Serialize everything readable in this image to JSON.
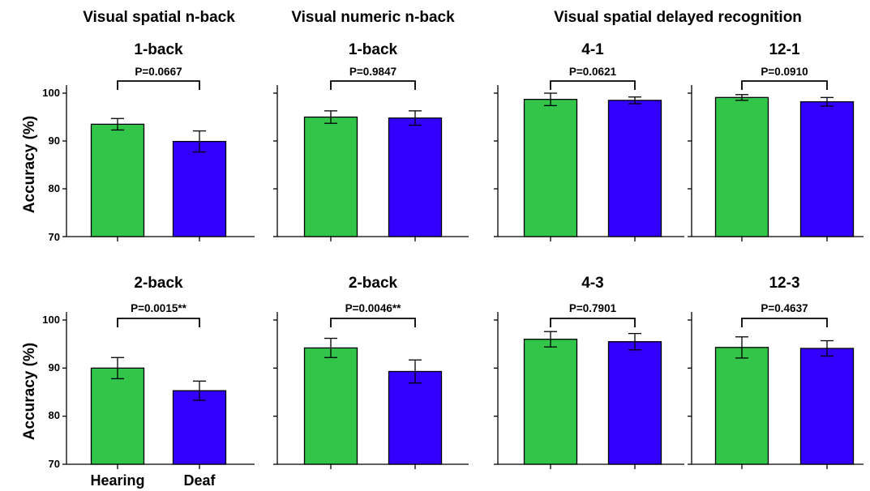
{
  "group_titles": [
    "Visual spatial n-back",
    "Visual numeric n-back",
    "Visual spatial delayed recognition"
  ],
  "ylabel": "Accuracy (%)",
  "yticks": [
    "70",
    "80",
    "90",
    "100"
  ],
  "categories": [
    "Hearing",
    "Deaf"
  ],
  "colors": {
    "Hearing": "#33c44a",
    "Deaf": "#3300ff"
  },
  "chart_data": [
    {
      "type": "bar",
      "title": "1-back",
      "categories": [
        "Hearing",
        "Deaf"
      ],
      "values": [
        93.5,
        89.9
      ],
      "errors": [
        1.2,
        2.2
      ],
      "ylim": [
        70,
        100
      ],
      "annotation": "P=0.0667"
    },
    {
      "type": "bar",
      "title": "1-back",
      "categories": [
        "Hearing",
        "Deaf"
      ],
      "values": [
        95.0,
        94.8
      ],
      "errors": [
        1.3,
        1.5
      ],
      "ylim": [
        70,
        100
      ],
      "annotation": "P=0.9847"
    },
    {
      "type": "bar",
      "title": "4-1",
      "categories": [
        "Hearing",
        "Deaf"
      ],
      "values": [
        98.7,
        98.5
      ],
      "errors": [
        1.3,
        0.7
      ],
      "ylim": [
        70,
        100
      ],
      "annotation": "P=0.0621"
    },
    {
      "type": "bar",
      "title": "12-1",
      "categories": [
        "Hearing",
        "Deaf"
      ],
      "values": [
        99.1,
        98.2
      ],
      "errors": [
        0.6,
        0.9
      ],
      "ylim": [
        70,
        100
      ],
      "annotation": "P=0.0910"
    },
    {
      "type": "bar",
      "title": "2-back",
      "categories": [
        "Hearing",
        "Deaf"
      ],
      "values": [
        90.0,
        85.3
      ],
      "errors": [
        2.2,
        2.0
      ],
      "ylim": [
        70,
        100
      ],
      "annotation": "P=0.0015**"
    },
    {
      "type": "bar",
      "title": "2-back",
      "categories": [
        "Hearing",
        "Deaf"
      ],
      "values": [
        94.2,
        89.3
      ],
      "errors": [
        2.0,
        2.4
      ],
      "ylim": [
        70,
        100
      ],
      "annotation": "P=0.0046**"
    },
    {
      "type": "bar",
      "title": "4-3",
      "categories": [
        "Hearing",
        "Deaf"
      ],
      "values": [
        96.0,
        95.5
      ],
      "errors": [
        1.6,
        1.7
      ],
      "ylim": [
        70,
        100
      ],
      "annotation": "P=0.7901"
    },
    {
      "type": "bar",
      "title": "12-3",
      "categories": [
        "Hearing",
        "Deaf"
      ],
      "values": [
        94.3,
        94.1
      ],
      "errors": [
        2.2,
        1.6
      ],
      "ylim": [
        70,
        100
      ],
      "annotation": "P=0.4637"
    }
  ]
}
